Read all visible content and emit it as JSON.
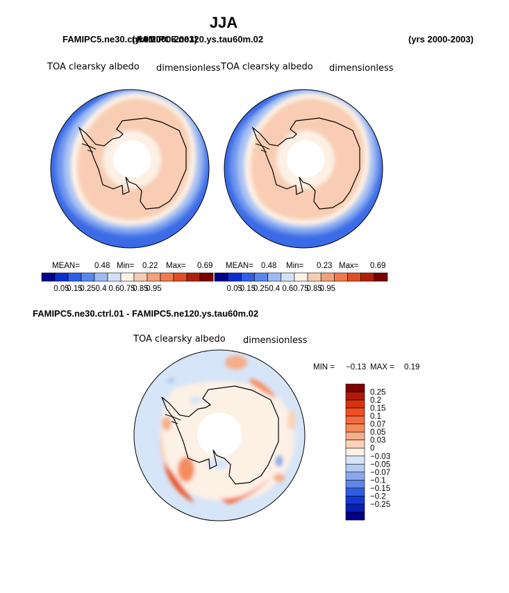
{
  "title": "JJA",
  "colors": {
    "continent_outline": "#000000",
    "pole_hole": "#ffffff",
    "background": "#ffffff"
  },
  "chart_data": [
    {
      "type": "heatmap",
      "projection": "south-polar-stereographic",
      "case_name": "FAMIPC5.ne30.ctrl.01",
      "years": "(yrs 2000-2003)",
      "variable": "TOA clearsky albedo",
      "units": "dimensionless",
      "stats": {
        "mean_label": "MEAN=",
        "mean": "0.48",
        "min_label": "Min=",
        "min": "0.22",
        "max_label": "Max=",
        "max": "0.69"
      },
      "levels": [
        "0.05",
        "0.15",
        "0.25",
        "0.4",
        "0.6",
        "0.75",
        "0.85",
        "0.95"
      ],
      "colors": [
        "#00008b",
        "#0a2fd0",
        "#2f5ee8",
        "#5a86ee",
        "#9fbaf2",
        "#d3e2f8",
        "#fdf1e6",
        "#f7ccb2",
        "#f2a07e",
        "#f07a4e",
        "#e24e24",
        "#b21f08",
        "#7a0000"
      ],
      "zones_outer_to_inner": [
        {
          "band": "ocean-outer",
          "value_range": [
            0.25,
            0.4
          ]
        },
        {
          "band": "ocean-ice-edge",
          "value_range": [
            0.4,
            0.6
          ]
        },
        {
          "band": "sea-ice-transition",
          "value_range": [
            0.6,
            0.75
          ]
        },
        {
          "band": "antarctic-ice",
          "value_range": [
            0.6,
            0.75
          ]
        },
        {
          "band": "near-pole",
          "value_range": [
            0.4,
            0.6
          ]
        }
      ]
    },
    {
      "type": "heatmap",
      "projection": "south-polar-stereographic",
      "case_name": "FAMIPC5.ne120.ys.tau60m.02",
      "years": "(yrs 2000-2003)",
      "variable": "TOA clearsky albedo",
      "units": "dimensionless",
      "stats": {
        "mean_label": "MEAN=",
        "mean": "0.48",
        "min_label": "Min=",
        "min": "0.23",
        "max_label": "Max=",
        "max": "0.69"
      },
      "levels": [
        "0.05",
        "0.15",
        "0.25",
        "0.4",
        "0.6",
        "0.75",
        "0.85",
        "0.95"
      ],
      "colors": [
        "#00008b",
        "#0a2fd0",
        "#2f5ee8",
        "#5a86ee",
        "#9fbaf2",
        "#d3e2f8",
        "#fdf1e6",
        "#f7ccb2",
        "#f2a07e",
        "#f07a4e",
        "#e24e24",
        "#b21f08",
        "#7a0000"
      ],
      "zones_outer_to_inner": [
        {
          "band": "ocean-outer",
          "value_range": [
            0.25,
            0.4
          ]
        },
        {
          "band": "ocean-ice-edge",
          "value_range": [
            0.4,
            0.6
          ]
        },
        {
          "band": "sea-ice-transition",
          "value_range": [
            0.6,
            0.75
          ]
        },
        {
          "band": "antarctic-ice",
          "value_range": [
            0.6,
            0.75
          ]
        },
        {
          "band": "near-pole",
          "value_range": [
            0.4,
            0.6
          ]
        }
      ]
    },
    {
      "type": "heatmap",
      "projection": "south-polar-stereographic",
      "title": "FAMIPC5.ne30.ctrl.01 - FAMIPC5.ne120.ys.tau60m.02",
      "variable": "TOA clearsky albedo",
      "units": "dimensionless",
      "stats": {
        "min_label": "MIN =",
        "min": "−0.13",
        "max_label": "MAX =",
        "max": "0.19"
      },
      "levels": [
        "0.25",
        "0.2",
        "0.15",
        "0.1",
        "0.07",
        "0.05",
        "0.03",
        "0",
        "−0.03",
        "−0.05",
        "−0.07",
        "−0.1",
        "−0.15",
        "−0.2",
        "−0.25"
      ],
      "colors": [
        "#800000",
        "#b01a06",
        "#d8330e",
        "#f04f22",
        "#f56b3d",
        "#f58c5e",
        "#f7ad88",
        "#fbd2b8",
        "#fdf0e5",
        "#d7e5f8",
        "#b3caf1",
        "#8aa9ec",
        "#5f86e6",
        "#2f5de0",
        "#1438d2",
        "#0a1fb0",
        "#00008b"
      ],
      "features": [
        {
          "region": "southern-ocean-background",
          "value_range": [
            -0.03,
            0
          ]
        },
        {
          "region": "antarctic-continent",
          "value_range": [
            0,
            0.03
          ]
        },
        {
          "region": "indian-sector-ice-edge",
          "value_range": [
            0.1,
            0.19
          ]
        },
        {
          "region": "atlantic-sector-ice-edge",
          "value_range": [
            0.1,
            0.19
          ]
        },
        {
          "region": "pacific-sector-ice-edge",
          "value_range": [
            0.05,
            0.1
          ]
        }
      ]
    }
  ]
}
